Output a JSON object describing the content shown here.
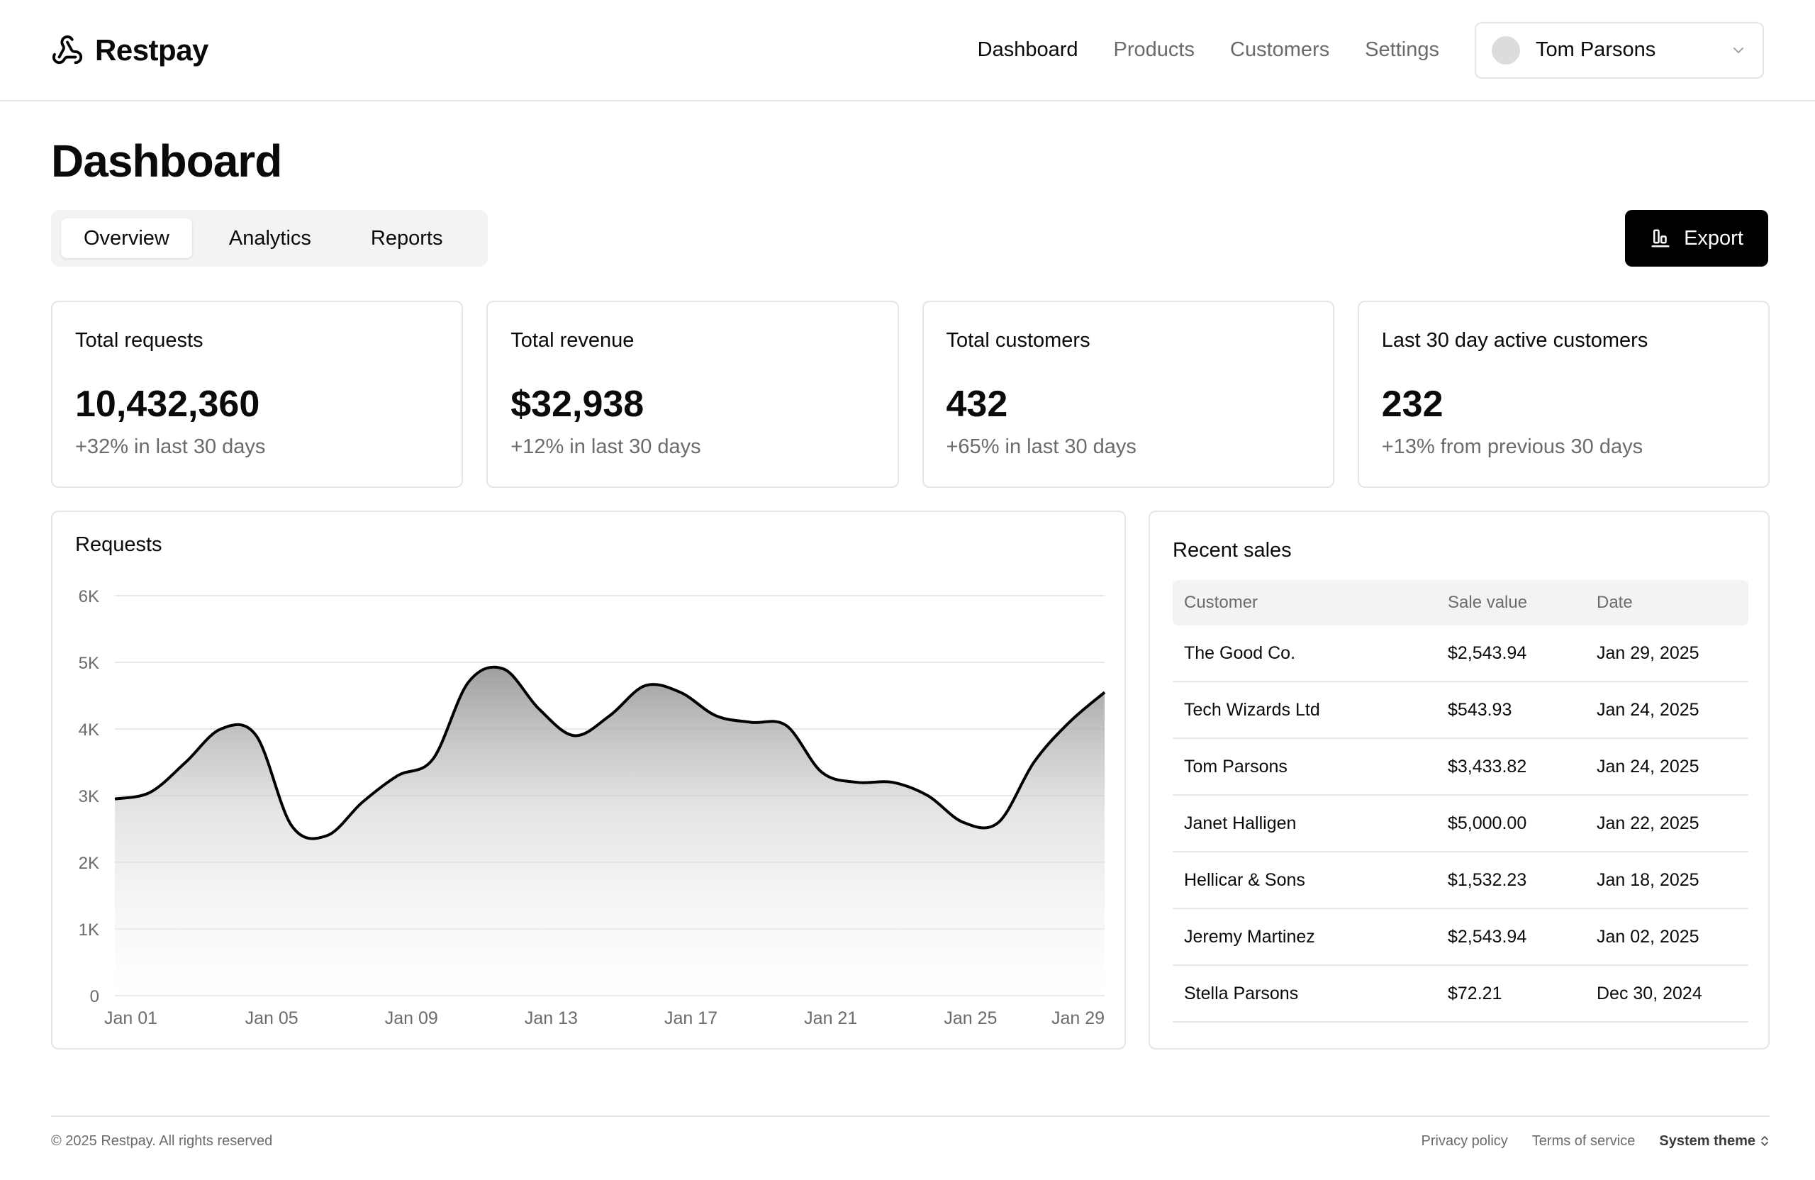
{
  "brand": {
    "name": "Restpay",
    "logo_icon": "webhook-icon"
  },
  "nav": {
    "items": [
      {
        "label": "Dashboard",
        "active": true
      },
      {
        "label": "Products",
        "active": false
      },
      {
        "label": "Customers",
        "active": false
      },
      {
        "label": "Settings",
        "active": false
      }
    ],
    "user": {
      "name": "Tom Parsons",
      "dropdown_icon": "chevron-down-icon"
    }
  },
  "page": {
    "title": "Dashboard",
    "tabs": [
      {
        "label": "Overview",
        "active": true
      },
      {
        "label": "Analytics",
        "active": false
      },
      {
        "label": "Reports",
        "active": false
      }
    ],
    "export_label": "Export",
    "export_icon": "chart-bar-icon"
  },
  "stats": [
    {
      "label": "Total requests",
      "value": "10,432,360",
      "change": "+32% in last 30 days"
    },
    {
      "label": "Total revenue",
      "value": "$32,938",
      "change": "+12% in last 30 days"
    },
    {
      "label": "Total customers",
      "value": "432",
      "change": "+65% in last 30 days"
    },
    {
      "label": "Last 30 day active customers",
      "value": "232",
      "change": "+13% from previous 30 days"
    }
  ],
  "chart_panel": {
    "title": "Requests"
  },
  "chart_data": {
    "type": "area",
    "title": "Requests",
    "ylim": [
      0,
      6000
    ],
    "y_ticks": [
      0,
      1000,
      2000,
      3000,
      4000,
      5000,
      6000
    ],
    "y_tick_labels": [
      "0",
      "1K",
      "2K",
      "3K",
      "4K",
      "5K",
      "6K"
    ],
    "x_tick_labels": [
      "Jan 01",
      "Jan 05",
      "Jan 09",
      "Jan 13",
      "Jan 17",
      "Jan 21",
      "Jan 25",
      "Jan 29"
    ],
    "x": [
      "Jan 01",
      "Jan 02",
      "Jan 03",
      "Jan 04",
      "Jan 05",
      "Jan 06",
      "Jan 07",
      "Jan 08",
      "Jan 09",
      "Jan 10",
      "Jan 11",
      "Jan 12",
      "Jan 13",
      "Jan 14",
      "Jan 15",
      "Jan 16",
      "Jan 17",
      "Jan 18",
      "Jan 19",
      "Jan 20",
      "Jan 21",
      "Jan 22",
      "Jan 23",
      "Jan 24",
      "Jan 25",
      "Jan 26",
      "Jan 27",
      "Jan 28",
      "Jan 29"
    ],
    "values": [
      2950,
      3050,
      3500,
      4000,
      3900,
      2550,
      2400,
      2900,
      3300,
      3550,
      4700,
      4900,
      4300,
      3900,
      4200,
      4650,
      4550,
      4200,
      4100,
      4050,
      3350,
      3200,
      3200,
      3000,
      2600,
      2600,
      3500,
      4100,
      4550
    ],
    "grid": true,
    "legend": "none",
    "line_color": "#000000",
    "fill": "gradient-gray"
  },
  "sales": {
    "title": "Recent sales",
    "columns": [
      "Customer",
      "Sale value",
      "Date"
    ],
    "rows": [
      [
        "The Good Co.",
        "$2,543.94",
        "Jan 29, 2025"
      ],
      [
        "Tech Wizards Ltd",
        "$543.93",
        "Jan 24, 2025"
      ],
      [
        "Tom Parsons",
        "$3,433.82",
        "Jan 24, 2025"
      ],
      [
        "Janet Halligen",
        "$5,000.00",
        "Jan 22, 2025"
      ],
      [
        "Hellicar & Sons",
        "$1,532.23",
        "Jan 18, 2025"
      ],
      [
        "Jeremy Martinez",
        "$2,543.94",
        "Jan 02, 2025"
      ],
      [
        "Stella Parsons",
        "$72.21",
        "Dec 30, 2024"
      ]
    ]
  },
  "footer": {
    "copyright": "© 2025 Restpay. All rights reserved",
    "links": [
      "Privacy policy",
      "Terms of service"
    ],
    "theme_label": "System theme",
    "theme_icon": "chevron-up-down-icon"
  },
  "colors": {
    "accent": "#000000",
    "muted_text": "#6b6b6b",
    "border": "#e5e5e5",
    "surface": "#f3f3f3"
  }
}
